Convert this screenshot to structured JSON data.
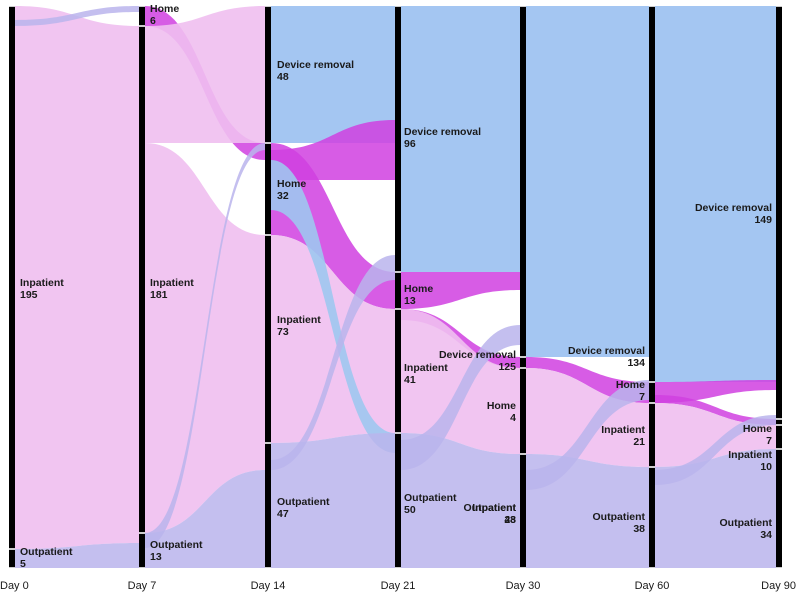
{
  "colors": {
    "inpatient": "#f3c6f3",
    "outpatient": "#c3bff0",
    "device_removal": "#a4c6f2",
    "home": "#cc4fdd",
    "bar": "#000000",
    "flow_inpatient": "#f0bff0",
    "flow_outpatient": "#bab4ec",
    "flow_home": "#d040e0",
    "flow_device": "#9fc6f0"
  },
  "days": [
    "Day 0",
    "Day 7",
    "Day 14",
    "Day 21",
    "Day 30",
    "Day 60",
    "Day 90"
  ],
  "nodes": [
    {
      "day": 0,
      "label": "Inpatient",
      "count": "195",
      "cat": "inpatient"
    },
    {
      "day": 0,
      "label": "Outpatient",
      "count": "5",
      "cat": "outpatient"
    },
    {
      "day": 1,
      "label": "Home",
      "count": "6",
      "cat": "home"
    },
    {
      "day": 1,
      "label": "Inpatient",
      "count": "181",
      "cat": "inpatient"
    },
    {
      "day": 1,
      "label": "Outpatient",
      "count": "13",
      "cat": "outpatient"
    },
    {
      "day": 2,
      "label": "Device removal",
      "count": "48",
      "cat": "device_removal"
    },
    {
      "day": 2,
      "label": "Home",
      "count": "32",
      "cat": "home"
    },
    {
      "day": 2,
      "label": "Inpatient",
      "count": "73",
      "cat": "inpatient"
    },
    {
      "day": 2,
      "label": "Outpatient",
      "count": "47",
      "cat": "outpatient"
    },
    {
      "day": 3,
      "label": "Device removal",
      "count": "96",
      "cat": "device_removal"
    },
    {
      "day": 3,
      "label": "Home",
      "count": "13",
      "cat": "home"
    },
    {
      "day": 3,
      "label": "Inpatient",
      "count": "41",
      "cat": "inpatient"
    },
    {
      "day": 3,
      "label": "Outpatient",
      "count": "50",
      "cat": "outpatient"
    },
    {
      "day": 4,
      "label": "Device removal",
      "count": "125",
      "cat": "device_removal"
    },
    {
      "day": 4,
      "label": "Home",
      "count": "4",
      "cat": "home"
    },
    {
      "day": 4,
      "label": "Inpatient",
      "count": "28",
      "cat": "inpatient"
    },
    {
      "day": 4,
      "label": "Outpatient",
      "count": "43",
      "cat": "outpatient"
    },
    {
      "day": 5,
      "label": "Device removal",
      "count": "134",
      "cat": "device_removal"
    },
    {
      "day": 5,
      "label": "Home",
      "count": "7",
      "cat": "home"
    },
    {
      "day": 5,
      "label": "Inpatient",
      "count": "21",
      "cat": "inpatient"
    },
    {
      "day": 5,
      "label": "Outpatient",
      "count": "38",
      "cat": "outpatient"
    },
    {
      "day": 6,
      "label": "Device removal",
      "count": "149",
      "cat": "device_removal"
    },
    {
      "day": 6,
      "label": "Home",
      "count": "7",
      "cat": "home"
    },
    {
      "day": 6,
      "label": "Inpatient",
      "count": "10",
      "cat": "inpatient"
    },
    {
      "day": 6,
      "label": "Outpatient",
      "count": "34",
      "cat": "outpatient"
    }
  ]
}
